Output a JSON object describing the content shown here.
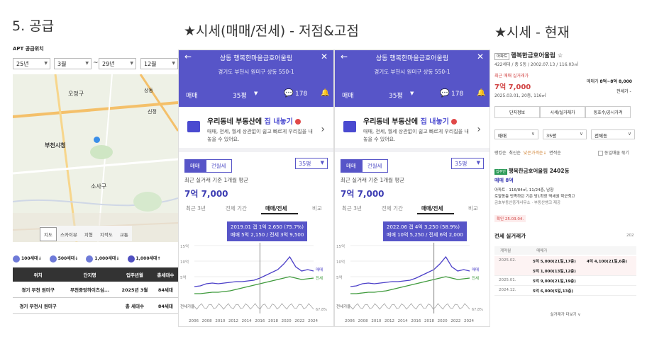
{
  "headings": {
    "supply": "5. 공급",
    "price_history": "★시세(매매/전세) - 저점&고점",
    "price_now": "★시세 - 현재"
  },
  "left": {
    "section_label": "APT 공급위치",
    "filters": {
      "from_year": "25년",
      "from_month": "3월",
      "tilde": "~",
      "to_year": "29년",
      "to_month": "12월"
    },
    "map_labels": [
      "오정구",
      "부천시청",
      "소사구",
      "상동",
      "신정"
    ],
    "map_tabs": [
      "지도",
      "스카이뷰",
      "지형",
      "지적도",
      "교통"
    ],
    "legend": [
      "100세대↓",
      "500세대↓",
      "1,000세대↓",
      "1,000세대↑"
    ],
    "table": {
      "headers": [
        "위치",
        "단지명",
        "입주년월",
        "총세대수"
      ],
      "rows": [
        [
          "경기 부천 원미구",
          "부천중앙하이츠심...",
          "2025년 3월",
          "84세대"
        ],
        [
          "경기 부천시 원미구",
          "",
          "총 세대수",
          "84세대"
        ]
      ]
    }
  },
  "panels": [
    {
      "title": "상동 행복한마을금호어울림",
      "address": "경기도 부천시 원미구 상동 550-1",
      "type": "매매",
      "size": "35평",
      "comments": "178",
      "banner_title_a": "우리동네 부동산에 ",
      "banner_title_b": "집 내놓기",
      "banner_text": "매매, 전세, 월세 상관없이 쉽고 빠르게 우리집을 내놓을 수 있어요.",
      "seg": [
        "매매",
        "전월세"
      ],
      "seg_size": "35평",
      "avg_label": "최근 실거래 기준 1개월 평균",
      "avg_value": "7억 7,000",
      "chart_tabs": [
        "최근 3년",
        "전체 기간",
        "매매/전세",
        "비교"
      ],
      "tip1": "2019.01 갭 1억 2,650 (75.7%)",
      "tip2": "매매 5억 2,150 / 전세 3억 9,500"
    },
    {
      "title": "상동 행복한마을금호어울림",
      "address": "경기도 부천시 원미구 상동 550-1",
      "type": "매매",
      "size": "35평",
      "comments": "178",
      "banner_title_a": "우리동네 부동산에 ",
      "banner_title_b": "집 내놓기",
      "banner_text": "매매, 전세, 월세 상관없이 쉽고 빠르게 우리집을 내놓을 수 있어요.",
      "seg": [
        "매매",
        "전월세"
      ],
      "seg_size": "35평",
      "avg_label": "최근 실거래 기준 1개월 평균",
      "avg_value": "7억 7,000",
      "chart_tabs": [
        "최근 3년",
        "전체 기간",
        "매매/전세",
        "비교"
      ],
      "tip1": "2022.06 갭 4억 3,250 (58.9%)",
      "tip2": "매매 10억 5,250 / 전세 6억 2,000"
    }
  ],
  "chart_data": [
    {
      "type": "line",
      "x_ticks": [
        "2006",
        "2008",
        "2010",
        "2012",
        "2014",
        "2016",
        "2018",
        "2020",
        "2022",
        "2024"
      ],
      "y_ticks": [
        "15억",
        "10억",
        "5억"
      ],
      "series": [
        {
          "name": "매매"
        },
        {
          "name": "전세"
        }
      ],
      "extra_label": "전세가율",
      "extra_value": "67.8%"
    },
    {
      "type": "line",
      "x_ticks": [
        "2006",
        "2008",
        "2010",
        "2012",
        "2014",
        "2016",
        "2018",
        "2020",
        "2022",
        "2024"
      ],
      "y_ticks": [
        "15억",
        "10억",
        "5억"
      ],
      "series": [
        {
          "name": "매매"
        },
        {
          "name": "전세"
        }
      ],
      "extra_label": "전세가율",
      "extra_value": "67.8%"
    }
  ],
  "right": {
    "badge": "아파트",
    "name": "행복한금호어울림 ☆",
    "meta": "422세대 / 총 5동 / 2002.07.13 / 116.03㎡",
    "recent_label": "최근 매매 실거래가",
    "recent_value": "7억 7,000",
    "recent_date": "2025.03.01, 20층, 116㎡",
    "side_label": "매매가",
    "side_value": "8억~8억 8,000",
    "side_label2": "전세가 -",
    "buttons": [
      "단지정보",
      "시세/실거래가",
      "동호수/공시가격"
    ],
    "filters": [
      "매매",
      "35평",
      "전체동"
    ],
    "sort": [
      "랭킹순",
      "최신순",
      "낮은가격순↓",
      "면적순"
    ],
    "sort_check": "동일매물 묶기",
    "listing_badge": "집주인",
    "listing_title": "행복한금호어울림 2402동",
    "listing_price": "매매 8억",
    "listing_desc": "아파트 · 116/84㎡, 11/24층, 남향",
    "listing_desc2": "로얄동층 만족하던 기존 방1확장 역세권 학군최고",
    "listing_agent": "금호부동산중개사무소 · 부동산뱅크 제공",
    "listing_date": "확인 25.03.04.",
    "real_title": "전세 실거래가",
    "real_num": "202",
    "real_head": [
      "계약월",
      "매매가"
    ],
    "real_rows": [
      [
        "2025.02.",
        "5억 5,000(21일,17층)",
        "4억 4,100(21일,6층)"
      ],
      [
        "",
        "5억 1,000(13일,12층)",
        ""
      ],
      [
        "2025.01.",
        "5억 9,000(21일,19층)",
        ""
      ],
      [
        "2024.12.",
        "5억 6,000(5일,13층)",
        ""
      ]
    ],
    "more": "실거래가 더보기 ∨"
  }
}
